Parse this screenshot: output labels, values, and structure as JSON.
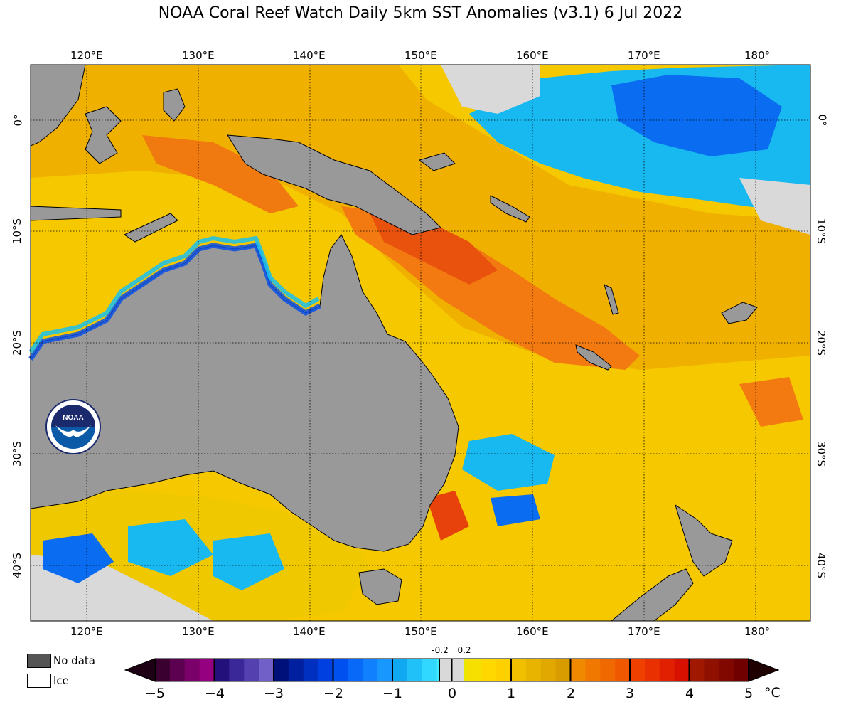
{
  "title": "NOAA Coral Reef Watch Daily 5km SST Anomalies  (v3.1)   6 Jul 2022",
  "map": {
    "lon_labels": [
      "120°E",
      "130°E",
      "140°E",
      "150°E",
      "160°E",
      "170°E",
      "180°"
    ],
    "lat_labels": [
      "0°",
      "10°S",
      "20°S",
      "30°S",
      "40°S"
    ],
    "colors": {
      "land": "#999999",
      "no_data": "#d9d9d9",
      "cold": "#0a6cf0",
      "cool": "#18b8f0",
      "neutral_warm": "#ffe200",
      "warm": "#f2b400",
      "hot": "#f37a10",
      "very_hot": "#e8420c"
    },
    "logo_text": "NOAA"
  },
  "legend": {
    "no_data_label": "No data",
    "ice_label": "Ice",
    "no_data_color": "#555555",
    "ice_color": "#ffffff"
  },
  "colorbar": {
    "ticks": [
      "−5",
      "−4",
      "−3",
      "−2",
      "−1",
      "0",
      "1",
      "2",
      "3",
      "4",
      "5"
    ],
    "small_ticks": [
      "-0.2",
      "0.2"
    ],
    "unit": "°C",
    "segments": [
      [
        "#3a0030",
        "#5c0050",
        "#7a006a",
        "#94007f"
      ],
      [
        "#24107a",
        "#3a2898",
        "#5540b0",
        "#7060c8"
      ],
      [
        "#00107a",
        "#0020a0",
        "#0030c0",
        "#0040e0"
      ],
      [
        "#0050f0",
        "#0868f8",
        "#1080ff",
        "#1898ff"
      ],
      [
        "#10a8f0",
        "#20c0f8",
        "#30d8ff",
        "#40eaff"
      ],
      [
        "#e8e800",
        "#f5e000",
        "#ffd800",
        "#ffd000"
      ],
      [
        "#f0c000",
        "#e8b400",
        "#e0a800",
        "#d89c00"
      ],
      [
        "#f08800",
        "#f07800",
        "#f06800",
        "#f05800"
      ],
      [
        "#f04000",
        "#e83000",
        "#e02000",
        "#d81000"
      ],
      [
        "#a01800",
        "#901000",
        "#800800",
        "#700000"
      ]
    ]
  }
}
